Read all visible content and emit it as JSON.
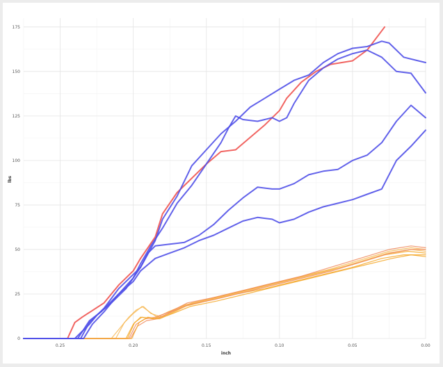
{
  "chart_data": {
    "type": "line",
    "title": "",
    "xlabel": "inch",
    "ylabel": "lbs",
    "x_reversed": true,
    "xlim": [
      0.275,
      0.0
    ],
    "ylim": [
      0,
      180
    ],
    "x_ticks": [
      0.25,
      0.2,
      0.15,
      0.1,
      0.05,
      0.0
    ],
    "x_tick_labels": [
      "0.25",
      "0.20",
      "0.15",
      "0.10",
      "0.05",
      "0.00"
    ],
    "y_ticks": [
      0,
      25,
      50,
      75,
      100,
      125,
      150,
      175
    ],
    "y_tick_labels": [
      "0",
      "25",
      "50",
      "75",
      "100",
      "125",
      "150",
      "175"
    ],
    "grid": true,
    "legend": "none",
    "colors": {
      "red": "#ef5350",
      "blue": "#5050e8",
      "orange": "#f5a623",
      "orange_light": "#f7b955",
      "orange_red": "#f0885a"
    },
    "series": [
      {
        "color": "#ef5350",
        "points": [
          [
            0.275,
            0
          ],
          [
            0.245,
            0
          ],
          [
            0.24,
            9
          ],
          [
            0.235,
            12
          ],
          [
            0.22,
            20
          ],
          [
            0.21,
            30
          ],
          [
            0.2,
            38
          ],
          [
            0.195,
            45
          ],
          [
            0.185,
            57
          ],
          [
            0.18,
            70
          ],
          [
            0.17,
            82
          ],
          [
            0.16,
            90
          ],
          [
            0.15,
            98
          ],
          [
            0.14,
            105
          ],
          [
            0.13,
            106
          ],
          [
            0.12,
            113
          ],
          [
            0.11,
            120
          ],
          [
            0.1,
            128
          ],
          [
            0.095,
            135
          ],
          [
            0.085,
            144
          ],
          [
            0.075,
            150
          ],
          [
            0.065,
            154
          ],
          [
            0.05,
            156
          ],
          [
            0.04,
            162
          ],
          [
            0.028,
            175
          ]
        ]
      },
      {
        "color": "#5050e8",
        "points": [
          [
            0.275,
            0
          ],
          [
            0.24,
            0
          ],
          [
            0.23,
            8
          ],
          [
            0.225,
            13
          ],
          [
            0.215,
            20
          ],
          [
            0.205,
            28
          ],
          [
            0.195,
            40
          ],
          [
            0.185,
            55
          ],
          [
            0.18,
            67
          ],
          [
            0.17,
            80
          ],
          [
            0.16,
            97
          ],
          [
            0.15,
            106
          ],
          [
            0.14,
            115
          ],
          [
            0.13,
            122
          ],
          [
            0.12,
            130
          ],
          [
            0.11,
            135
          ],
          [
            0.1,
            140
          ],
          [
            0.09,
            145
          ],
          [
            0.08,
            148
          ],
          [
            0.07,
            155
          ],
          [
            0.06,
            160
          ],
          [
            0.05,
            163
          ],
          [
            0.04,
            164
          ],
          [
            0.03,
            167
          ],
          [
            0.025,
            166
          ],
          [
            0.015,
            158
          ],
          [
            0.005,
            156
          ],
          [
            0.0,
            155
          ]
        ]
      },
      {
        "color": "#5050e8",
        "points": [
          [
            0.275,
            0
          ],
          [
            0.238,
            0
          ],
          [
            0.23,
            10
          ],
          [
            0.222,
            15
          ],
          [
            0.21,
            25
          ],
          [
            0.2,
            34
          ],
          [
            0.195,
            42
          ],
          [
            0.188,
            52
          ],
          [
            0.18,
            62
          ],
          [
            0.17,
            76
          ],
          [
            0.16,
            86
          ],
          [
            0.15,
            98
          ],
          [
            0.14,
            110
          ],
          [
            0.135,
            118
          ],
          [
            0.13,
            125
          ],
          [
            0.125,
            123
          ],
          [
            0.115,
            122
          ],
          [
            0.105,
            124
          ],
          [
            0.1,
            122
          ],
          [
            0.095,
            124
          ],
          [
            0.09,
            132
          ],
          [
            0.08,
            145
          ],
          [
            0.07,
            152
          ],
          [
            0.06,
            157
          ],
          [
            0.05,
            160
          ],
          [
            0.04,
            162
          ],
          [
            0.03,
            158
          ],
          [
            0.02,
            150
          ],
          [
            0.01,
            149
          ],
          [
            0.0,
            138
          ]
        ]
      },
      {
        "color": "#5050e8",
        "points": [
          [
            0.275,
            0
          ],
          [
            0.236,
            0
          ],
          [
            0.23,
            9
          ],
          [
            0.22,
            17
          ],
          [
            0.21,
            28
          ],
          [
            0.2,
            36
          ],
          [
            0.195,
            40
          ],
          [
            0.19,
            48
          ],
          [
            0.185,
            52
          ],
          [
            0.175,
            53
          ],
          [
            0.165,
            54
          ],
          [
            0.155,
            58
          ],
          [
            0.145,
            64
          ],
          [
            0.135,
            72
          ],
          [
            0.125,
            79
          ],
          [
            0.115,
            85
          ],
          [
            0.105,
            84
          ],
          [
            0.1,
            84
          ],
          [
            0.09,
            87
          ],
          [
            0.08,
            92
          ],
          [
            0.07,
            94
          ],
          [
            0.06,
            95
          ],
          [
            0.05,
            100
          ],
          [
            0.04,
            103
          ],
          [
            0.03,
            110
          ],
          [
            0.02,
            122
          ],
          [
            0.01,
            131
          ],
          [
            0.0,
            124
          ]
        ]
      },
      {
        "color": "#5050e8",
        "points": [
          [
            0.275,
            0
          ],
          [
            0.234,
            0
          ],
          [
            0.228,
            8
          ],
          [
            0.22,
            15
          ],
          [
            0.21,
            25
          ],
          [
            0.2,
            32
          ],
          [
            0.195,
            38
          ],
          [
            0.185,
            45
          ],
          [
            0.175,
            48
          ],
          [
            0.165,
            51
          ],
          [
            0.155,
            55
          ],
          [
            0.145,
            58
          ],
          [
            0.135,
            62
          ],
          [
            0.125,
            66
          ],
          [
            0.115,
            68
          ],
          [
            0.105,
            67
          ],
          [
            0.1,
            65
          ],
          [
            0.09,
            67
          ],
          [
            0.08,
            71
          ],
          [
            0.07,
            74
          ],
          [
            0.06,
            76
          ],
          [
            0.05,
            78
          ],
          [
            0.04,
            81
          ],
          [
            0.03,
            84
          ],
          [
            0.02,
            100
          ],
          [
            0.01,
            108
          ],
          [
            0.0,
            117
          ]
        ]
      },
      {
        "color": "#f5a623",
        "points": [
          [
            0.275,
            0
          ],
          [
            0.205,
            0
          ],
          [
            0.2,
            8
          ],
          [
            0.195,
            12
          ],
          [
            0.185,
            11
          ],
          [
            0.175,
            14
          ],
          [
            0.165,
            18
          ],
          [
            0.15,
            21
          ],
          [
            0.13,
            25
          ],
          [
            0.11,
            28
          ],
          [
            0.09,
            32
          ],
          [
            0.07,
            36
          ],
          [
            0.05,
            40
          ],
          [
            0.03,
            45
          ],
          [
            0.015,
            47
          ],
          [
            0.0,
            47
          ]
        ]
      },
      {
        "color": "#f5a623",
        "points": [
          [
            0.275,
            0
          ],
          [
            0.204,
            0
          ],
          [
            0.199,
            9
          ],
          [
            0.194,
            12
          ],
          [
            0.186,
            11
          ],
          [
            0.176,
            15
          ],
          [
            0.164,
            19
          ],
          [
            0.148,
            22
          ],
          [
            0.128,
            26
          ],
          [
            0.108,
            30
          ],
          [
            0.088,
            34
          ],
          [
            0.068,
            38
          ],
          [
            0.048,
            42
          ],
          [
            0.028,
            47
          ],
          [
            0.012,
            49
          ],
          [
            0.0,
            48
          ]
        ]
      },
      {
        "color": "#f7b955",
        "points": [
          [
            0.275,
            0
          ],
          [
            0.215,
            0
          ],
          [
            0.21,
            5
          ],
          [
            0.203,
            12
          ],
          [
            0.198,
            16
          ],
          [
            0.193,
            18
          ],
          [
            0.188,
            14
          ],
          [
            0.18,
            12
          ],
          [
            0.172,
            16
          ],
          [
            0.16,
            20
          ],
          [
            0.145,
            23
          ],
          [
            0.125,
            27
          ],
          [
            0.105,
            31
          ],
          [
            0.085,
            35
          ],
          [
            0.065,
            39
          ],
          [
            0.045,
            44
          ],
          [
            0.025,
            49
          ],
          [
            0.01,
            51
          ],
          [
            0.0,
            50
          ]
        ]
      },
      {
        "color": "#f7b955",
        "points": [
          [
            0.275,
            0
          ],
          [
            0.212,
            0
          ],
          [
            0.206,
            9
          ],
          [
            0.2,
            14
          ],
          [
            0.194,
            18
          ],
          [
            0.189,
            15
          ],
          [
            0.182,
            11
          ],
          [
            0.174,
            14
          ],
          [
            0.162,
            19
          ],
          [
            0.146,
            22
          ],
          [
            0.126,
            26
          ],
          [
            0.106,
            30
          ],
          [
            0.086,
            34
          ],
          [
            0.066,
            38
          ],
          [
            0.046,
            43
          ],
          [
            0.026,
            48
          ],
          [
            0.01,
            50
          ],
          [
            0.0,
            49
          ]
        ]
      },
      {
        "color": "#f0885a",
        "points": [
          [
            0.275,
            0
          ],
          [
            0.203,
            0
          ],
          [
            0.198,
            8
          ],
          [
            0.192,
            11
          ],
          [
            0.185,
            12
          ],
          [
            0.175,
            15
          ],
          [
            0.163,
            20
          ],
          [
            0.145,
            23
          ],
          [
            0.125,
            27
          ],
          [
            0.105,
            31
          ],
          [
            0.085,
            35
          ],
          [
            0.065,
            40
          ],
          [
            0.045,
            45
          ],
          [
            0.025,
            50
          ],
          [
            0.01,
            52
          ],
          [
            0.0,
            51
          ]
        ]
      },
      {
        "color": "#f0885a",
        "points": [
          [
            0.275,
            0
          ],
          [
            0.202,
            0
          ],
          [
            0.197,
            7
          ],
          [
            0.191,
            10
          ],
          [
            0.184,
            11
          ],
          [
            0.174,
            15
          ],
          [
            0.162,
            19
          ],
          [
            0.144,
            22
          ],
          [
            0.124,
            26
          ],
          [
            0.104,
            30
          ],
          [
            0.084,
            34
          ],
          [
            0.064,
            38
          ],
          [
            0.044,
            43
          ],
          [
            0.024,
            48
          ],
          [
            0.01,
            50
          ],
          [
            0.0,
            50
          ]
        ]
      },
      {
        "color": "#f5a623",
        "points": [
          [
            0.275,
            0
          ],
          [
            0.201,
            0
          ],
          [
            0.196,
            9
          ],
          [
            0.19,
            12
          ],
          [
            0.183,
            11
          ],
          [
            0.173,
            14
          ],
          [
            0.161,
            18
          ],
          [
            0.143,
            21
          ],
          [
            0.123,
            25
          ],
          [
            0.103,
            29
          ],
          [
            0.083,
            33
          ],
          [
            0.063,
            37
          ],
          [
            0.043,
            41
          ],
          [
            0.023,
            45
          ],
          [
            0.01,
            47
          ],
          [
            0.0,
            46
          ]
        ]
      }
    ]
  }
}
